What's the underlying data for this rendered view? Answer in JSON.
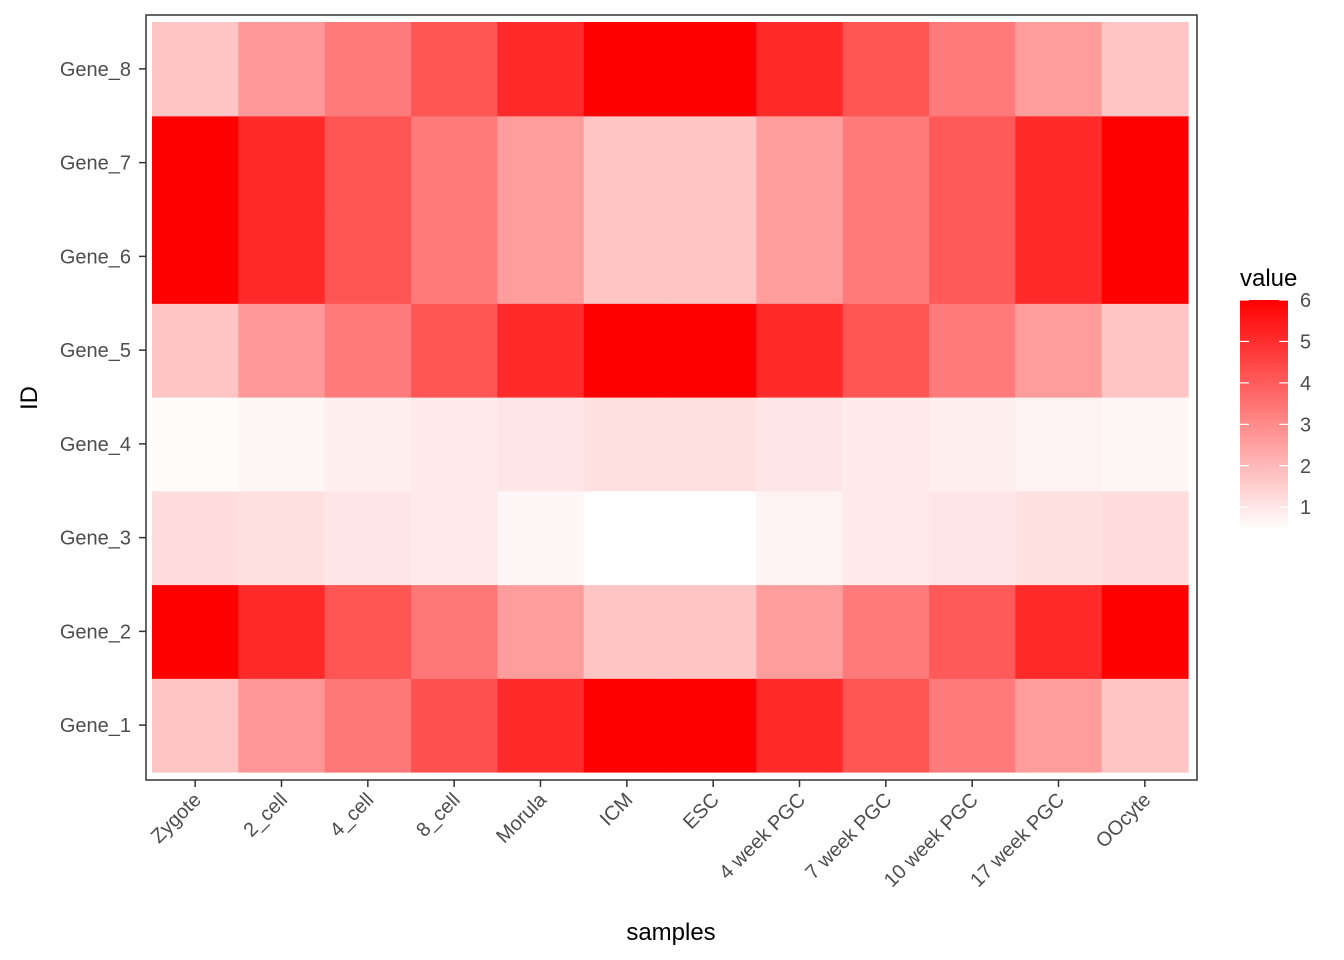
{
  "chart_data": {
    "type": "heatmap",
    "xlabel": "samples",
    "ylabel": "ID",
    "x_categories": [
      "Zygote",
      "2_cell",
      "4_cell",
      "8_cell",
      "Morula",
      "ICM",
      "ESC",
      "4 week PGC",
      "7 week PGC",
      "10 week PGC",
      "17 week PGC",
      "OOcyte"
    ],
    "y_categories": [
      "Gene_1",
      "Gene_2",
      "Gene_3",
      "Gene_4",
      "Gene_5",
      "Gene_6",
      "Gene_7",
      "Gene_8"
    ],
    "values": [
      [
        1.4,
        2.5,
        3.2,
        4.1,
        5.0,
        6.0,
        6.0,
        5.0,
        4.0,
        3.1,
        2.3,
        1.4
      ],
      [
        6.0,
        5.0,
        4.0,
        3.2,
        2.3,
        1.4,
        1.4,
        2.3,
        3.1,
        3.9,
        5.0,
        6.0
      ],
      [
        0.8,
        0.7,
        0.6,
        0.5,
        0.2,
        0.0,
        0.0,
        0.3,
        0.5,
        0.6,
        0.7,
        0.8
      ],
      [
        0.1,
        0.2,
        0.4,
        0.5,
        0.6,
        0.7,
        0.7,
        0.6,
        0.5,
        0.4,
        0.3,
        0.2
      ],
      [
        1.4,
        2.4,
        3.1,
        4.0,
        5.0,
        6.0,
        6.0,
        5.0,
        4.0,
        3.1,
        2.3,
        1.4
      ],
      [
        6.0,
        5.0,
        4.0,
        3.1,
        2.3,
        1.4,
        1.4,
        2.3,
        3.1,
        3.9,
        5.0,
        6.0
      ],
      [
        6.0,
        5.0,
        4.0,
        3.1,
        2.3,
        1.4,
        1.4,
        2.3,
        3.1,
        3.9,
        5.0,
        6.0
      ],
      [
        1.4,
        2.4,
        3.1,
        4.0,
        5.0,
        6.0,
        6.0,
        5.0,
        4.0,
        3.1,
        2.3,
        1.4
      ]
    ],
    "color_scale": {
      "low": "#ffffff",
      "high": "#ff0000",
      "min": 0.0,
      "max": 6.0
    },
    "legend": {
      "title": "value",
      "placement": "right",
      "breaks": [
        1,
        2,
        3,
        4,
        5,
        6
      ],
      "labels": [
        "1",
        "2",
        "3",
        "4",
        "5",
        "6"
      ]
    },
    "grid": false
  }
}
